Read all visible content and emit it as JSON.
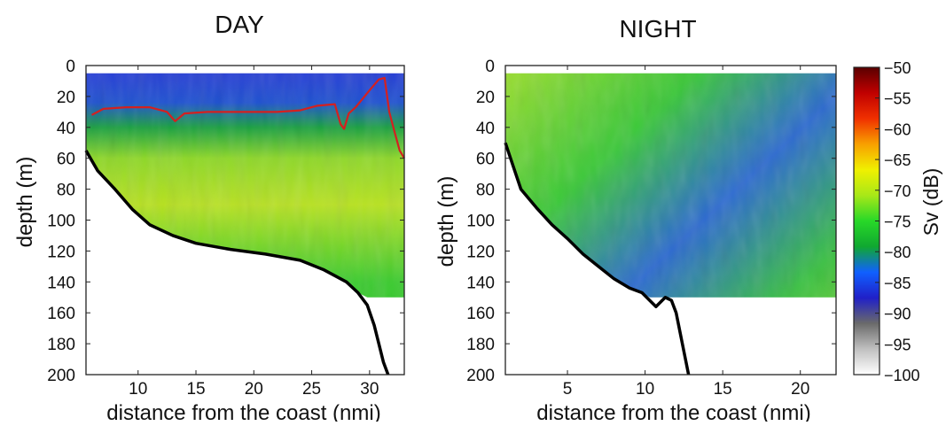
{
  "chart_data": [
    {
      "type": "heatmap",
      "title": "DAY",
      "xlabel": "distance from the coast (nmi)",
      "ylabel": "depth (m)",
      "xlim": [
        5.5,
        33
      ],
      "ylim": [
        200,
        0
      ],
      "xticks": [
        10,
        15,
        20,
        25,
        30
      ],
      "yticks": [
        0,
        20,
        40,
        60,
        80,
        100,
        120,
        140,
        160,
        180,
        200
      ],
      "echogram_max_depth": 150,
      "echogram_top_depth": 5,
      "seafloor": {
        "color": "#000000",
        "x": [
          5.5,
          6.5,
          8,
          9.5,
          11,
          13,
          15,
          18,
          21,
          24,
          26,
          28,
          29,
          29.8,
          30.4,
          30.8,
          31.2,
          31.6
        ],
        "depth": [
          55,
          68,
          80,
          93,
          103,
          110,
          115,
          119,
          122,
          126,
          132,
          140,
          147,
          155,
          168,
          180,
          192,
          200
        ]
      },
      "layer_boundary": {
        "color": "#d42020",
        "x": [
          6,
          7,
          9,
          11,
          12.5,
          13.2,
          14,
          16,
          18,
          20,
          22,
          24,
          25.5,
          27,
          27.5,
          27.8,
          28.2,
          28.8,
          30,
          30.8,
          31.3,
          31.7,
          32.2,
          32.6,
          33
        ],
        "depth": [
          32,
          28,
          27,
          27,
          30,
          36,
          31,
          30,
          30,
          30,
          30,
          29,
          26,
          25,
          38,
          41,
          31,
          27,
          16,
          9,
          8,
          30,
          44,
          55,
          60
        ]
      }
    },
    {
      "type": "heatmap",
      "title": "NIGHT",
      "xlabel": "distance from the coast (nmi)",
      "ylabel": "depth (m)",
      "xlim": [
        1,
        22.3
      ],
      "ylim": [
        200,
        0
      ],
      "xticks": [
        5,
        10,
        15,
        20
      ],
      "yticks": [
        0,
        20,
        40,
        60,
        80,
        100,
        120,
        140,
        160,
        180,
        200
      ],
      "echogram_max_depth": 150,
      "echogram_top_depth": 5,
      "seafloor": {
        "color": "#000000",
        "x": [
          1,
          1.5,
          2,
          3,
          4,
          5,
          6,
          7,
          8,
          9,
          9.8,
          10.3,
          10.7,
          11,
          11.3,
          11.7,
          12,
          12.3,
          12.6,
          12.8
        ],
        "depth": [
          50,
          65,
          80,
          92,
          103,
          112,
          122,
          130,
          138,
          144,
          147,
          152,
          156,
          153,
          150,
          152,
          160,
          175,
          190,
          200
        ]
      }
    }
  ],
  "colorbar": {
    "label": "Sv (dB)",
    "ticks": [
      -50,
      -55,
      -60,
      -65,
      -70,
      -75,
      -80,
      -85,
      -90,
      -95,
      -100
    ],
    "range": [
      -100,
      -50
    ],
    "colors": [
      "#ffffff",
      "#c0c0c0",
      "#6a6a6a",
      "#2020c8",
      "#1060ff",
      "#10a830",
      "#28d828",
      "#a8e818",
      "#f0f000",
      "#f8a000",
      "#f03000",
      "#c00000",
      "#5a0000"
    ]
  }
}
